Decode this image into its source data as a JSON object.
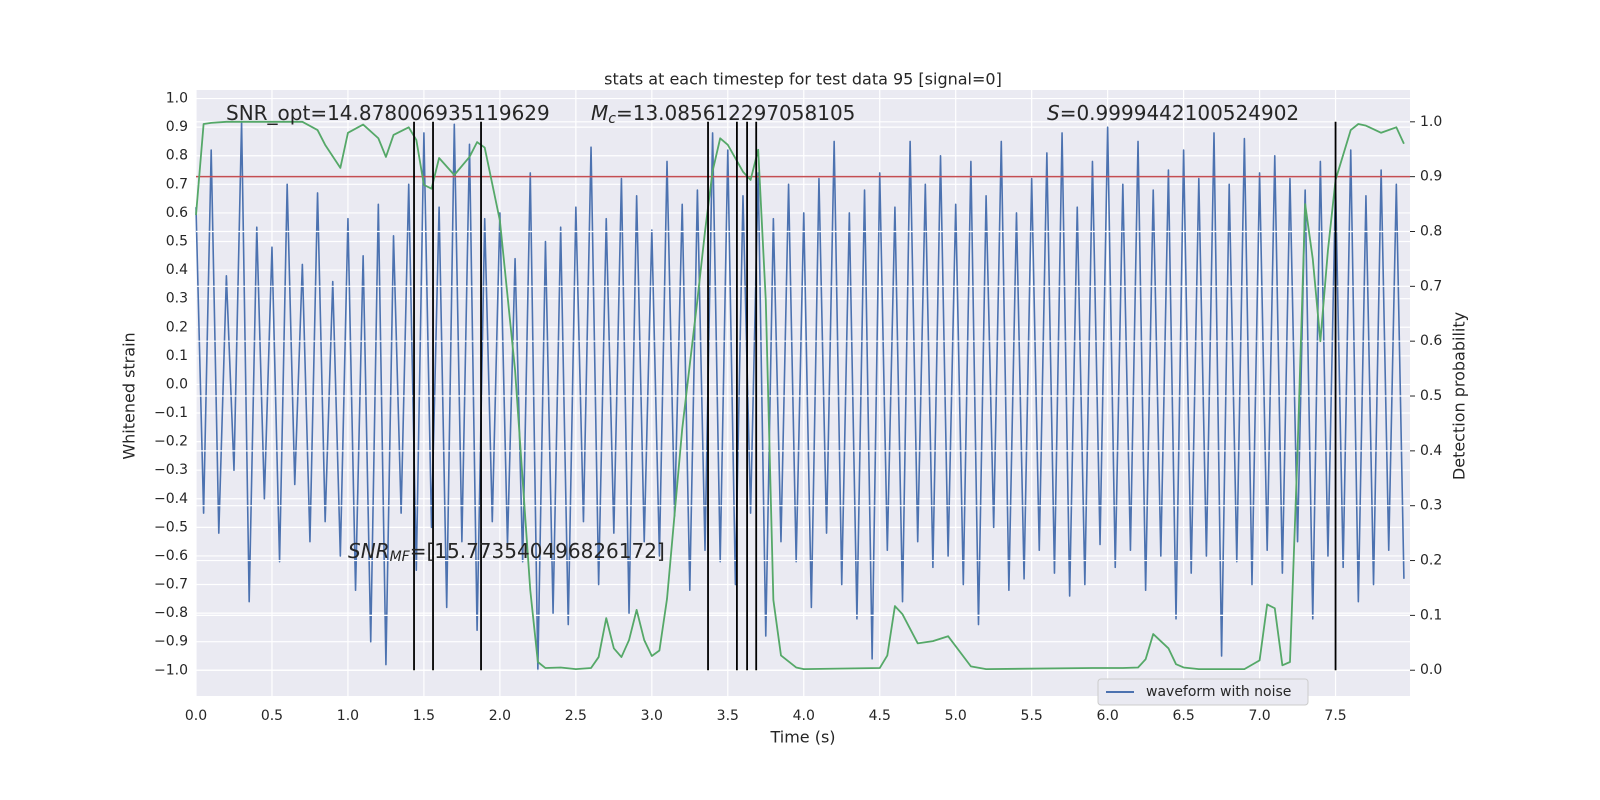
{
  "chart_data": {
    "type": "line",
    "title": "stats at each timestep for test data 95 [signal=0]",
    "xlabel": "Time (s)",
    "ylabel": "Whitened strain",
    "y2label": "Detection probability",
    "xlim": [
      0,
      7.99
    ],
    "ylim": [
      -1.09,
      1.03
    ],
    "y2lim": [
      -0.047,
      1.058
    ],
    "grid": true,
    "legend": "lower right",
    "xticks": [
      {
        "value": 0,
        "label": "0.0"
      },
      {
        "value": 0.5,
        "label": "0.5"
      },
      {
        "value": 1,
        "label": "1.0"
      },
      {
        "value": 1.5,
        "label": "1.5"
      },
      {
        "value": 2,
        "label": "2.0"
      },
      {
        "value": 2.5,
        "label": "2.5"
      },
      {
        "value": 3,
        "label": "3.0"
      },
      {
        "value": 3.5,
        "label": "3.5"
      },
      {
        "value": 4,
        "label": "4.0"
      },
      {
        "value": 4.5,
        "label": "4.5"
      },
      {
        "value": 5,
        "label": "5.0"
      },
      {
        "value": 5.5,
        "label": "5.5"
      },
      {
        "value": 6,
        "label": "6.0"
      },
      {
        "value": 6.5,
        "label": "6.5"
      },
      {
        "value": 7,
        "label": "7.0"
      },
      {
        "value": 7.5,
        "label": "7.5"
      }
    ],
    "yticks": [
      {
        "value": -1,
        "label": "−1.0"
      },
      {
        "value": -0.9,
        "label": "−0.9"
      },
      {
        "value": -0.8,
        "label": "−0.8"
      },
      {
        "value": -0.7,
        "label": "−0.7"
      },
      {
        "value": -0.6,
        "label": "−0.6"
      },
      {
        "value": -0.5,
        "label": "−0.5"
      },
      {
        "value": -0.4,
        "label": "−0.4"
      },
      {
        "value": -0.3,
        "label": "−0.3"
      },
      {
        "value": -0.2,
        "label": "−0.2"
      },
      {
        "value": -0.1,
        "label": "−0.1"
      },
      {
        "value": 0,
        "label": "0.0"
      },
      {
        "value": 0.1,
        "label": "0.1"
      },
      {
        "value": 0.2,
        "label": "0.2"
      },
      {
        "value": 0.3,
        "label": "0.3"
      },
      {
        "value": 0.4,
        "label": "0.4"
      },
      {
        "value": 0.5,
        "label": "0.5"
      },
      {
        "value": 0.6,
        "label": "0.6"
      },
      {
        "value": 0.7,
        "label": "0.7"
      },
      {
        "value": 0.8,
        "label": "0.8"
      },
      {
        "value": 0.9,
        "label": "0.9"
      },
      {
        "value": 1,
        "label": "1.0"
      }
    ],
    "y2ticks": [
      {
        "value": 0,
        "label": "0.0"
      },
      {
        "value": 0.1,
        "label": "0.1"
      },
      {
        "value": 0.2,
        "label": "0.2"
      },
      {
        "value": 0.3,
        "label": "0.3"
      },
      {
        "value": 0.4,
        "label": "0.4"
      },
      {
        "value": 0.5,
        "label": "0.5"
      },
      {
        "value": 0.6,
        "label": "0.6"
      },
      {
        "value": 0.7,
        "label": "0.7"
      },
      {
        "value": 0.8,
        "label": "0.8"
      },
      {
        "value": 0.9,
        "label": "0.9"
      },
      {
        "value": 1,
        "label": "1.0"
      }
    ],
    "series": [
      {
        "name": "waveform with noise",
        "color": "#4c72b0",
        "x": [
          0,
          0.05,
          0.1,
          0.15,
          0.2,
          0.25,
          0.3,
          0.35,
          0.4,
          0.45,
          0.5,
          0.55,
          0.6,
          0.65,
          0.7,
          0.75,
          0.8,
          0.85,
          0.9,
          0.95,
          1,
          1.05,
          1.1,
          1.15,
          1.2,
          1.25,
          1.3,
          1.35,
          1.4,
          1.45,
          1.5,
          1.55,
          1.6,
          1.65,
          1.7,
          1.75,
          1.8,
          1.85,
          1.9,
          1.95,
          2,
          2.05,
          2.1,
          2.15,
          2.2,
          2.25,
          2.3,
          2.35,
          2.4,
          2.45,
          2.5,
          2.55,
          2.6,
          2.65,
          2.7,
          2.75,
          2.8,
          2.85,
          2.9,
          2.95,
          3,
          3.05,
          3.1,
          3.15,
          3.2,
          3.25,
          3.3,
          3.35,
          3.4,
          3.45,
          3.5,
          3.55,
          3.6,
          3.65,
          3.7,
          3.75,
          3.8,
          3.85,
          3.9,
          3.95,
          4,
          4.05,
          4.1,
          4.15,
          4.2,
          4.25,
          4.3,
          4.35,
          4.4,
          4.45,
          4.5,
          4.55,
          4.6,
          4.65,
          4.7,
          4.75,
          4.8,
          4.85,
          4.9,
          4.95,
          5,
          5.05,
          5.1,
          5.15,
          5.2,
          5.25,
          5.3,
          5.35,
          5.4,
          5.45,
          5.5,
          5.55,
          5.6,
          5.65,
          5.7,
          5.75,
          5.8,
          5.85,
          5.9,
          5.95,
          6,
          6.05,
          6.1,
          6.15,
          6.2,
          6.25,
          6.3,
          6.35,
          6.4,
          6.45,
          6.5,
          6.55,
          6.6,
          6.65,
          6.7,
          6.75,
          6.8,
          6.85,
          6.9,
          6.95,
          7,
          7.05,
          7.1,
          7.15,
          7.2,
          7.25,
          7.3,
          7.35,
          7.4,
          7.45,
          7.5,
          7.55,
          7.6,
          7.65,
          7.7,
          7.75,
          7.8,
          7.85,
          7.9,
          7.95
        ],
        "values": [
          0.62,
          -0.45,
          0.82,
          -0.52,
          0.38,
          -0.3,
          0.92,
          -0.76,
          0.55,
          -0.4,
          0.48,
          -0.62,
          0.7,
          -0.35,
          0.42,
          -0.55,
          0.67,
          -0.48,
          0.36,
          -0.6,
          0.58,
          -0.72,
          0.45,
          -0.9,
          0.63,
          -0.98,
          0.52,
          -0.45,
          0.7,
          -0.65,
          0.88,
          -0.5,
          0.62,
          -0.78,
          0.91,
          -0.55,
          0.84,
          -0.86,
          0.58,
          -0.48,
          0.6,
          -0.56,
          0.44,
          -0.62,
          0.74,
          -1.0,
          0.5,
          -0.8,
          0.55,
          -0.84,
          0.62,
          -0.48,
          0.83,
          -0.7,
          0.58,
          -0.52,
          0.72,
          -0.8,
          0.66,
          -0.55,
          0.54,
          -0.6,
          0.78,
          -0.46,
          0.63,
          -0.72,
          0.68,
          -0.58,
          0.88,
          -0.62,
          0.82,
          -0.7,
          0.66,
          -0.45,
          0.74,
          -0.88,
          0.58,
          -0.55,
          0.7,
          -0.62,
          0.6,
          -0.78,
          0.72,
          -0.52,
          0.85,
          -0.7,
          0.6,
          -0.82,
          0.68,
          -0.96,
          0.74,
          -0.58,
          0.62,
          -0.76,
          0.85,
          -0.55,
          0.7,
          -0.64,
          0.8,
          -0.6,
          0.63,
          -0.7,
          0.78,
          -0.84,
          0.66,
          -0.5,
          0.85,
          -0.72,
          0.6,
          -0.68,
          0.72,
          -0.58,
          0.81,
          -0.66,
          0.88,
          -0.74,
          0.62,
          -0.7,
          0.78,
          -0.56,
          0.9,
          -0.64,
          0.7,
          -0.58,
          0.85,
          -0.72,
          0.68,
          -0.6,
          0.75,
          -0.82,
          0.82,
          -0.66,
          0.72,
          -0.6,
          0.88,
          -0.95,
          0.7,
          -0.62,
          0.86,
          -0.7,
          0.74,
          -0.58,
          0.8,
          -0.66,
          0.72,
          -0.55,
          0.68,
          -0.82,
          0.78,
          -0.6,
          0.7,
          -0.64,
          0.82,
          -0.76,
          0.66,
          -0.7,
          0.75,
          -0.58,
          0.7,
          -0.68
        ]
      },
      {
        "color": "#55a868",
        "axis": "y2",
        "x": [
          0,
          0.05,
          0.1,
          0.2,
          0.7,
          0.8,
          0.85,
          0.95,
          1,
          1.1,
          1.2,
          1.25,
          1.3,
          1.4,
          1.45,
          1.5,
          1.55,
          1.6,
          1.7,
          1.8,
          1.85,
          1.9,
          2,
          2.1,
          2.2,
          2.25,
          2.3,
          2.4,
          2.5,
          2.6,
          2.65,
          2.7,
          2.75,
          2.8,
          2.85,
          2.9,
          2.95,
          3,
          3.05,
          3.1,
          3.2,
          3.3,
          3.35,
          3.4,
          3.45,
          3.5,
          3.6,
          3.65,
          3.7,
          3.75,
          3.8,
          3.85,
          3.95,
          4,
          4.5,
          4.55,
          4.6,
          4.65,
          4.75,
          4.85,
          4.95,
          5.1,
          5.2,
          5.9,
          6.1,
          6.2,
          6.25,
          6.3,
          6.4,
          6.45,
          6.5,
          6.6,
          6.9,
          7,
          7.05,
          7.1,
          7.15,
          7.2,
          7.25,
          7.3,
          7.35,
          7.4,
          7.45,
          7.5,
          7.6,
          7.65,
          7.7,
          7.8,
          7.9,
          7.95
        ],
        "values": [
          0.83,
          0.996,
          0.998,
          1.0,
          1.0,
          0.985,
          0.958,
          0.916,
          0.98,
          0.995,
          0.97,
          0.936,
          0.976,
          0.99,
          0.967,
          0.885,
          0.878,
          0.934,
          0.903,
          0.936,
          0.963,
          0.953,
          0.82,
          0.547,
          0.146,
          0.015,
          0.004,
          0.005,
          0.002,
          0.004,
          0.024,
          0.095,
          0.04,
          0.024,
          0.055,
          0.11,
          0.055,
          0.026,
          0.036,
          0.13,
          0.44,
          0.675,
          0.8,
          0.91,
          0.97,
          0.958,
          0.909,
          0.894,
          0.949,
          0.675,
          0.128,
          0.027,
          0.005,
          0.002,
          0.004,
          0.027,
          0.117,
          0.102,
          0.049,
          0.053,
          0.062,
          0.007,
          0.002,
          0.004,
          0.004,
          0.005,
          0.02,
          0.066,
          0.04,
          0.011,
          0.005,
          0.002,
          0.002,
          0.018,
          0.12,
          0.113,
          0.009,
          0.015,
          0.4,
          0.85,
          0.75,
          0.6,
          0.766,
          0.894,
          0.985,
          0.996,
          0.993,
          0.98,
          0.99,
          0.96
        ]
      }
    ],
    "hlines": [
      {
        "y": 0.9,
        "color": "#c44e52",
        "axis": "y2"
      }
    ],
    "vlines": {
      "x": [
        1.435,
        1.56,
        1.876,
        3.37,
        3.56,
        3.627,
        3.687,
        7.5
      ],
      "ymin": 0,
      "ymax": 1,
      "axis": "y2",
      "color": "#000000"
    },
    "annotations": [
      {
        "text": "SNR_opt=14.878006935119629"
      },
      {
        "symbol": "M",
        "subscript": "c",
        "text": "=13.085612297058105"
      },
      {
        "symbol": "S",
        "text": "=0.9999442100524902"
      },
      {
        "symbol": "SNR",
        "subscript": "MF",
        "text": "=[15.773540496826172]"
      }
    ]
  }
}
